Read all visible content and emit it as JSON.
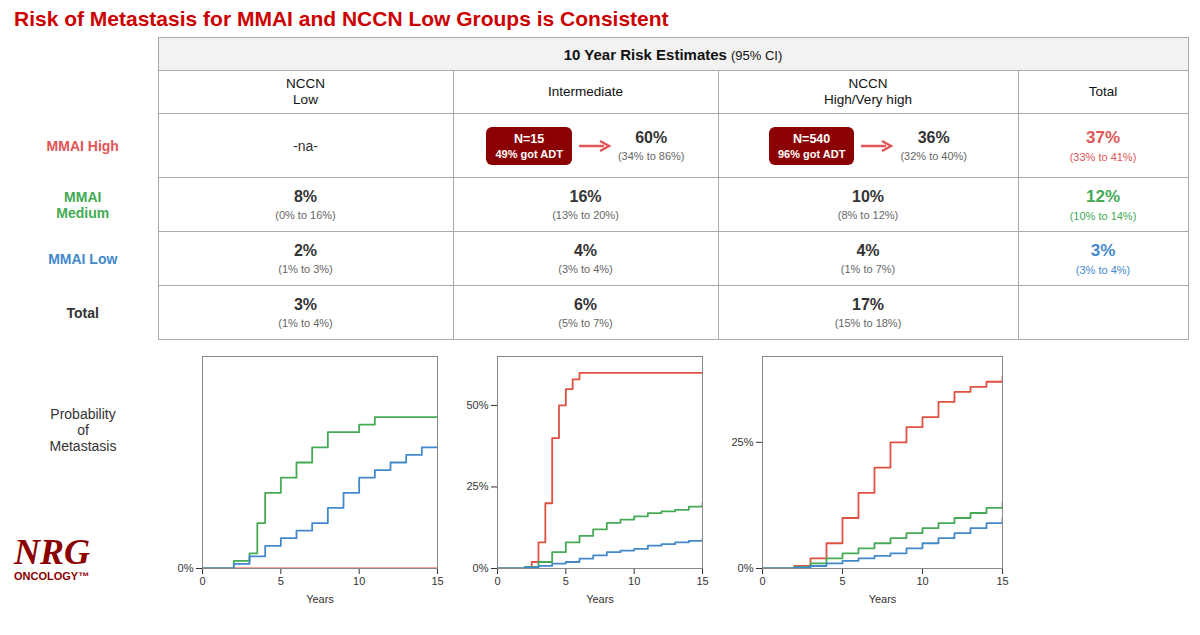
{
  "title": "Risk of Metastasis for MMAI and NCCN Low Groups is Consistent",
  "title_color": "#cc0000",
  "background_color": "#ffffff",
  "subtitle": "10 Year Risk Estimates",
  "subtitle_note": "(95% CI)",
  "ylabel": "Probability\nof\nMetastasis",
  "annotations": [
    "NRG",
    "ONCOLOGY™"
  ],
  "table": {
    "columns": [
      "NCCN\nLow",
      "Intermediate",
      "NCCN\nHigh/Very high",
      "Total"
    ],
    "rows": [
      {
        "label": "MMAI High",
        "color": "#e05555",
        "cells": [
          {
            "label": "-na-"
          },
          {
            "badge": {
              "label": "N=15",
              "note": "49% got ADT",
              "color": "#8b0000"
            },
            "label": "60%",
            "ci": "(34% to 86%)"
          },
          {
            "badge": {
              "label": "N=540",
              "note": "96% got ADT",
              "color": "#8b0000"
            },
            "label": "36%",
            "ci": "(32% to 40%)"
          },
          {
            "label": "37%",
            "ci": "(33% to 41%)",
            "color": "#e05555"
          }
        ]
      },
      {
        "label": "MMAI\nMedium",
        "color": "#44aa55",
        "cells": [
          {
            "label": "8%",
            "ci": "(0% to 16%)"
          },
          {
            "label": "16%",
            "ci": "(13% to 20%)"
          },
          {
            "label": "10%",
            "ci": "(8% to 12%)"
          },
          {
            "label": "12%",
            "ci": "(10% to 14%)",
            "color": "#44aa55"
          }
        ]
      },
      {
        "label": "MMAI Low",
        "color": "#4488cc",
        "cells": [
          {
            "label": "2%",
            "ci": "(1% to 3%)"
          },
          {
            "label": "4%",
            "ci": "(3% to 4%)"
          },
          {
            "label": "4%",
            "ci": "(1% to 7%)"
          },
          {
            "label": "3%",
            "ci": "(3% to 4%)",
            "color": "#4488cc"
          }
        ]
      },
      {
        "label": "Total",
        "color": "#333333",
        "cells": [
          {
            "label": "3%",
            "ci": "(1% to 4%)"
          },
          {
            "label": "6%",
            "ci": "(5% to 7%)"
          },
          {
            "label": "17%",
            "ci": "(15% to 18%)"
          },
          null
        ]
      }
    ]
  },
  "chart_data": [
    {
      "type": "line",
      "line_style": "step",
      "xlabel": "Years",
      "grid": false,
      "xlim": [
        0,
        15
      ],
      "xticks": [
        0,
        5,
        10,
        15
      ],
      "ylim": [
        0,
        14
      ],
      "yticks": [
        {
          "value": 0,
          "label": "0%"
        }
      ],
      "series": [
        {
          "color": "#e05040",
          "x": [
            0,
            0.5,
            1,
            2,
            3,
            4,
            5,
            6,
            7,
            8,
            9,
            10,
            11,
            12,
            13,
            14,
            15
          ],
          "values": [
            0,
            0,
            0,
            0,
            0,
            0,
            0,
            0,
            0,
            0,
            0,
            0,
            0,
            0,
            0,
            0,
            0
          ]
        },
        {
          "color": "#44aa55",
          "x": [
            0,
            1,
            2,
            3,
            3.5,
            4,
            5,
            6,
            7,
            8,
            9,
            10,
            11,
            12,
            13,
            14,
            15
          ],
          "values": [
            0,
            0,
            0.5,
            1,
            3,
            5,
            6,
            7,
            8,
            9,
            9,
            9.5,
            10,
            10,
            10,
            10,
            10
          ]
        },
        {
          "color": "#4488cc",
          "x": [
            0,
            1,
            2,
            3,
            4,
            5,
            6,
            7,
            8,
            9,
            10,
            11,
            12,
            13,
            14,
            15
          ],
          "values": [
            0,
            0,
            0.3,
            0.8,
            1.5,
            2,
            2.5,
            3,
            4,
            5,
            6,
            6.5,
            7,
            7.5,
            8,
            8
          ]
        }
      ]
    },
    {
      "type": "line",
      "line_style": "step",
      "xlabel": "Years",
      "grid": false,
      "xlim": [
        0,
        15
      ],
      "xticks": [
        0,
        5,
        10,
        15
      ],
      "ylim": [
        0,
        65
      ],
      "yticks": [
        {
          "value": 0,
          "label": "0%"
        },
        {
          "value": 25,
          "label": "25%"
        },
        {
          "value": 50,
          "label": "50%"
        }
      ],
      "series": [
        {
          "color": "#e05040",
          "x": [
            0,
            1,
            2,
            2.5,
            3,
            3.5,
            4,
            4.5,
            5,
            5.5,
            6,
            7,
            8,
            9,
            10,
            11,
            12,
            13,
            14,
            15
          ],
          "values": [
            0,
            0,
            0.5,
            2,
            8,
            20,
            40,
            50,
            55,
            58,
            60,
            60,
            60,
            60,
            60,
            60,
            60,
            60,
            60,
            60
          ]
        },
        {
          "color": "#44aa55",
          "x": [
            0,
            1,
            2,
            3,
            4,
            5,
            6,
            7,
            8,
            9,
            10,
            11,
            12,
            13,
            14,
            15
          ],
          "values": [
            0,
            0,
            0.5,
            2,
            5,
            8,
            10,
            12,
            14,
            15,
            16,
            17,
            17.5,
            18,
            19,
            20
          ]
        },
        {
          "color": "#4488cc",
          "x": [
            0,
            1,
            2,
            3,
            4,
            5,
            6,
            7,
            8,
            9,
            10,
            11,
            12,
            13,
            14,
            15
          ],
          "values": [
            0,
            0,
            0.3,
            0.8,
            1.5,
            2,
            3,
            4,
            5,
            5.5,
            6,
            7,
            7.5,
            8,
            8.5,
            9
          ]
        }
      ]
    },
    {
      "type": "line",
      "line_style": "step",
      "xlabel": "Years",
      "grid": false,
      "xlim": [
        0,
        15
      ],
      "xticks": [
        0,
        5,
        10,
        15
      ],
      "ylim": [
        0,
        42
      ],
      "yticks": [
        {
          "value": 0,
          "label": "0%"
        },
        {
          "value": 25,
          "label": "25%"
        }
      ],
      "series": [
        {
          "color": "#e05040",
          "x": [
            0,
            1,
            2,
            3,
            4,
            5,
            6,
            7,
            8,
            9,
            10,
            11,
            12,
            13,
            14,
            15
          ],
          "values": [
            0,
            0,
            0.5,
            2,
            5,
            10,
            15,
            20,
            25,
            28,
            30,
            33,
            35,
            36,
            37,
            38
          ]
        },
        {
          "color": "#44aa55",
          "x": [
            0,
            1,
            2,
            3,
            4,
            5,
            6,
            7,
            8,
            9,
            10,
            11,
            12,
            13,
            14,
            15
          ],
          "values": [
            0,
            0,
            0.3,
            1,
            2,
            3,
            4,
            5,
            6,
            7,
            8,
            9,
            10,
            11,
            12,
            13
          ]
        },
        {
          "color": "#4488cc",
          "x": [
            0,
            1,
            2,
            3,
            4,
            5,
            6,
            7,
            8,
            9,
            10,
            11,
            12,
            13,
            14,
            15
          ],
          "values": [
            0,
            0,
            0.2,
            0.5,
            1,
            1.5,
            2,
            2.5,
            3,
            4,
            5,
            6,
            7,
            8,
            9,
            10
          ]
        }
      ]
    }
  ]
}
